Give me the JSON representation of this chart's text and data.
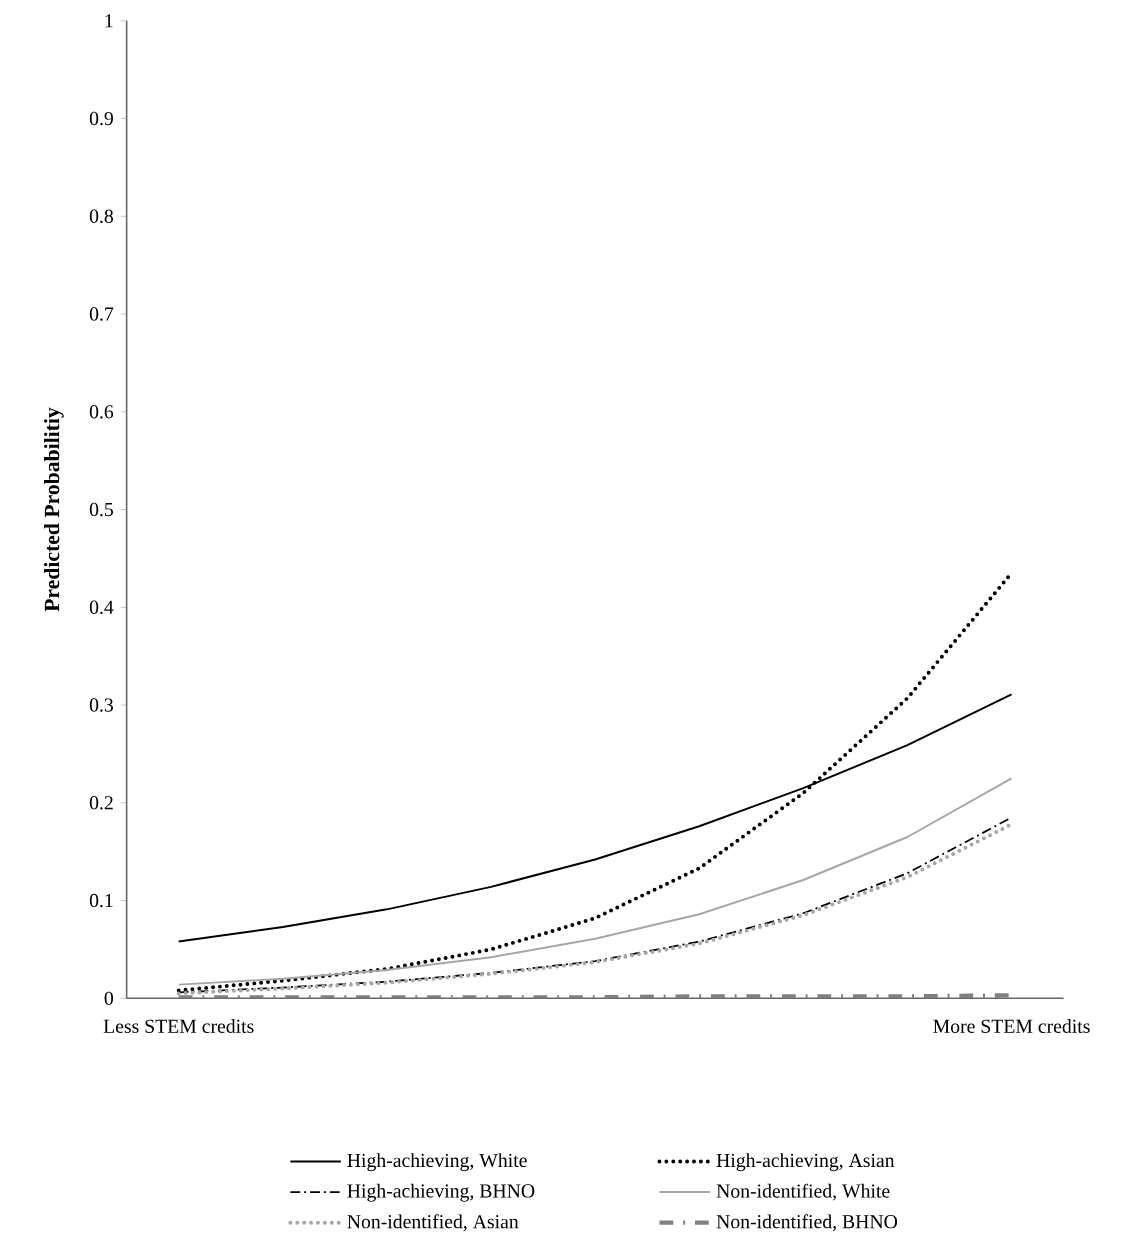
{
  "chart_data": {
    "type": "line",
    "ylabel": "Predicted Probabilitiy",
    "categories": [
      "Less STEM credits",
      null,
      null,
      null,
      null,
      null,
      null,
      null,
      "More STEM credits"
    ],
    "ylim": [
      0,
      1
    ],
    "yticks": [
      0,
      0.1,
      0.2,
      0.3,
      0.4,
      0.5,
      0.6,
      0.7,
      0.8,
      0.9,
      1
    ],
    "grid": false,
    "legend": "bottom",
    "marker": "none",
    "series": [
      {
        "name": "High-achieving, White",
        "color": "#000000",
        "line_style": "solid",
        "values": [
          0.058,
          0.073,
          0.091,
          0.114,
          0.142,
          0.176,
          0.215,
          0.259,
          0.311
        ]
      },
      {
        "name": "High-achieving, Asian",
        "color": "#000000",
        "line_style": "dotted",
        "values": [
          0.008,
          0.018,
          0.03,
          0.05,
          0.082,
          0.133,
          0.21,
          0.307,
          0.435
        ]
      },
      {
        "name": "High-achieving, BHNO",
        "color": "#000000",
        "line_style": "dashdot",
        "values": [
          0.006,
          0.011,
          0.017,
          0.026,
          0.038,
          0.058,
          0.087,
          0.128,
          0.185
        ]
      },
      {
        "name": "Non-identified, White",
        "color": "#a6a6a6",
        "line_style": "solid",
        "values": [
          0.014,
          0.02,
          0.029,
          0.042,
          0.061,
          0.086,
          0.121,
          0.165,
          0.225
        ]
      },
      {
        "name": "Non-identified, Asian",
        "color": "#a6a6a6",
        "line_style": "dotted",
        "values": [
          0.005,
          0.01,
          0.016,
          0.025,
          0.037,
          0.056,
          0.085,
          0.124,
          0.178
        ]
      },
      {
        "name": "Non-identified, BHNO",
        "color": "#808080",
        "line_style": "longdashdot",
        "values": [
          0.001,
          0.001,
          0.001,
          0.001,
          0.001,
          0.002,
          0.002,
          0.002,
          0.003
        ]
      }
    ]
  }
}
